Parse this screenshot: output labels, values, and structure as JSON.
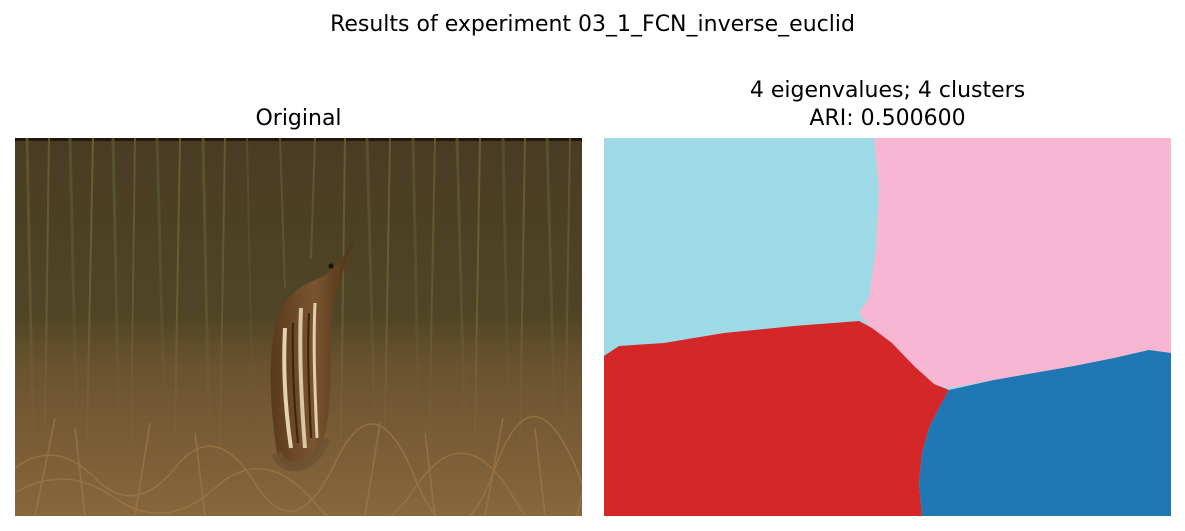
{
  "figure": {
    "suptitle": "Results of experiment 03_1_FCN_inverse_euclid"
  },
  "panels": [
    {
      "title": "Original",
      "image_subject": "bittern-among-grass-photo"
    },
    {
      "title_line1": "4 eigenvalues; 4 clusters",
      "title_line2": "ARI: 0.500600",
      "clusters": [
        {
          "id": "cluster-top-left",
          "color": "#9edae5"
        },
        {
          "id": "cluster-top-right",
          "color": "#f7b6d2"
        },
        {
          "id": "cluster-bottom-left",
          "color": "#d62728"
        },
        {
          "id": "cluster-bottom-right",
          "color": "#1f77b4"
        }
      ]
    }
  ]
}
